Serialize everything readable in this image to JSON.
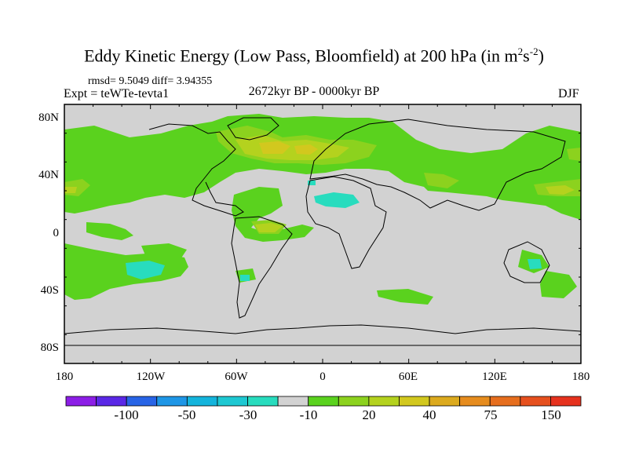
{
  "title": {
    "main": "Eddy Kinetic Energy (Low Pass, Bloomfield) at 200 hPa (in m",
    "sup1": "2",
    "mid": "s",
    "sup2": "-2",
    "close": ")"
  },
  "stats": "rmsd= 9.5049 diff= 3.94355",
  "expt": "Expt = teWTe-tevta1",
  "period": "2672kyr BP - 0000kyr BP",
  "season": "DJF",
  "lat_labels": [
    "80N",
    "40N",
    "0",
    "40S",
    "80S"
  ],
  "lon_labels": [
    "180",
    "120W",
    "60W",
    "0",
    "60E",
    "120E",
    "180"
  ],
  "colorbar": {
    "labels": [
      "-100",
      "-50",
      "-30",
      "-10",
      "20",
      "40",
      "75",
      "150"
    ],
    "colors": [
      "#8c1ee6",
      "#5a28e6",
      "#2864e6",
      "#1e96e6",
      "#14b4dc",
      "#1ec8d2",
      "#28dcbe",
      "#d2d2d2",
      "#5ad21e",
      "#8cd21e",
      "#b4d21e",
      "#d2c81e",
      "#dcaa1e",
      "#e68c1e",
      "#e66e1e",
      "#e6501e",
      "#e6321e"
    ]
  }
}
